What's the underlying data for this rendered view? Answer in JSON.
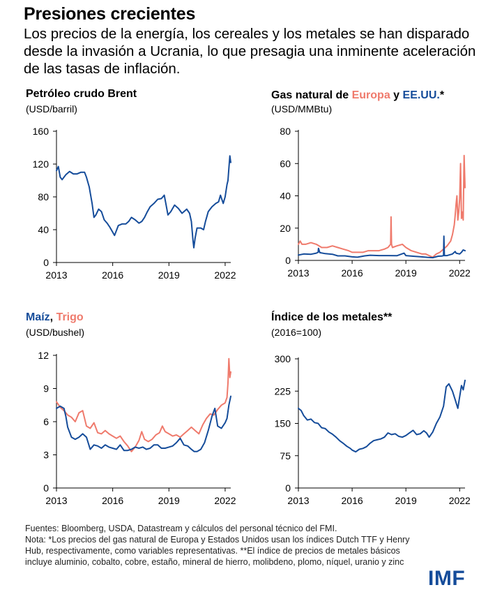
{
  "headline": "Presiones crecientes",
  "subtitle": "Los precios de la energía, los cereales y los metales se han disparado desde la invasión a Ucrania, lo que presagia una inminente aceleración de las tasas de inflación.",
  "panels": {
    "brent": {
      "title": "Petróleo crudo Brent",
      "unit": "(USD/barril)"
    },
    "gas": {
      "title_prefix": "Gas natural de ",
      "title_europe": "Europa",
      "title_conj": " y ",
      "title_us": "EE.UU.",
      "title_suffix": "*",
      "unit": "(USD/MMBtu)"
    },
    "grains": {
      "title_corn": "Maíz",
      "title_sep": ", ",
      "title_wheat": "Trigo",
      "unit": "(USD/bushel)"
    },
    "metals": {
      "title": "Índice de los metales**",
      "unit": "(2016=100)"
    }
  },
  "footer": {
    "sources": "Fuentes: Bloomberg, USDA, Datastream y cálculos del personal técnico del FMI.",
    "note": "Nota: *Los precios del gas natural de Europa y Estados Unidos usan los índices Dutch TTF y Henry Hub, respectivamente, como variables representativas. **El índice de precios de metales básicos incluye aluminio, cobalto, cobre, estaño, mineral de hierro, molibdeno, plomo, níquel, uranio y zinc"
  },
  "logo": "IMF",
  "colors": {
    "blue": "#154c9a",
    "red": "#ef7a6c"
  },
  "chart_data": [
    {
      "type": "line",
      "title": "Petróleo crudo Brent",
      "ylabel": "USD/barril",
      "xlim": [
        2013,
        2022.3
      ],
      "ylim": [
        0,
        160
      ],
      "yticks": [
        0,
        40,
        80,
        120,
        160
      ],
      "xticks": [
        2013,
        2016,
        2019,
        2022
      ],
      "series": [
        {
          "name": "Brent",
          "color": "#154c9a",
          "x": [
            2013,
            2013.1,
            2013.2,
            2013.3,
            2013.5,
            2013.7,
            2013.9,
            2014.1,
            2014.3,
            2014.5,
            2014.6,
            2014.75,
            2014.9,
            2015.0,
            2015.1,
            2015.25,
            2015.4,
            2015.55,
            2015.7,
            2015.85,
            2016.0,
            2016.1,
            2016.3,
            2016.5,
            2016.7,
            2016.85,
            2017.0,
            2017.2,
            2017.4,
            2017.55,
            2017.7,
            2017.85,
            2018.0,
            2018.2,
            2018.4,
            2018.6,
            2018.75,
            2018.85,
            2018.95,
            2019.1,
            2019.3,
            2019.5,
            2019.7,
            2019.85,
            2019.95,
            2020.1,
            2020.2,
            2020.28,
            2020.33,
            2020.4,
            2020.5,
            2020.7,
            2020.85,
            2020.95,
            2021.1,
            2021.3,
            2021.5,
            2021.65,
            2021.75,
            2021.9,
            2022.0,
            2022.1,
            2022.15,
            2022.2,
            2022.25,
            2022.3
          ],
          "values": [
            112,
            117,
            104,
            101,
            107,
            111,
            108,
            108,
            110,
            110,
            104,
            92,
            72,
            55,
            58,
            65,
            62,
            52,
            48,
            43,
            37,
            33,
            45,
            47,
            47,
            50,
            55,
            52,
            48,
            50,
            55,
            62,
            68,
            72,
            77,
            78,
            82,
            70,
            58,
            62,
            70,
            66,
            60,
            63,
            65,
            60,
            50,
            28,
            18,
            30,
            42,
            42,
            40,
            50,
            62,
            68,
            72,
            74,
            82,
            72,
            80,
            95,
            100,
            115,
            130,
            122
          ]
        }
      ]
    },
    {
      "type": "line",
      "title": "Gas natural de Europa y EE.UU.*",
      "ylabel": "USD/MMBtu",
      "xlim": [
        2013,
        2022.3
      ],
      "ylim": [
        0,
        80
      ],
      "yticks": [
        0,
        20,
        40,
        60,
        80
      ],
      "xticks": [
        2013,
        2016,
        2019,
        2022
      ],
      "series": [
        {
          "name": "Europa",
          "color": "#ef7a6c",
          "x": [
            2013,
            2013.1,
            2013.2,
            2013.4,
            2013.7,
            2014.0,
            2014.3,
            2014.6,
            2014.9,
            2015.2,
            2015.5,
            2015.8,
            2016.0,
            2016.3,
            2016.6,
            2016.9,
            2017.2,
            2017.5,
            2017.8,
            2018.0,
            2018.15,
            2018.17,
            2018.2,
            2018.25,
            2018.5,
            2018.8,
            2019.0,
            2019.3,
            2019.6,
            2019.9,
            2020.1,
            2020.3,
            2020.5,
            2020.7,
            2020.9,
            2021.1,
            2021.3,
            2021.5,
            2021.6,
            2021.7,
            2021.75,
            2021.8,
            2021.85,
            2021.9,
            2021.95,
            2022.0,
            2022.05,
            2022.1,
            2022.15,
            2022.2,
            2022.25,
            2022.3
          ],
          "values": [
            10,
            12,
            10,
            10,
            11,
            10,
            8,
            8,
            9,
            8,
            7,
            6,
            5,
            5,
            5,
            6,
            6,
            6,
            7,
            8,
            10,
            27,
            10,
            8,
            9,
            10,
            8,
            6,
            5,
            4,
            4,
            3,
            2,
            4,
            5,
            7,
            9,
            12,
            16,
            22,
            28,
            35,
            40,
            25,
            30,
            38,
            60,
            26,
            30,
            25,
            65,
            45
          ]
        },
        {
          "name": "EE.UU.",
          "color": "#154c9a",
          "x": [
            2013,
            2013.3,
            2013.7,
            2014.0,
            2014.1,
            2014.12,
            2014.2,
            2014.5,
            2014.9,
            2015.2,
            2015.6,
            2016.0,
            2016.3,
            2016.7,
            2017.0,
            2017.5,
            2018.0,
            2018.5,
            2018.9,
            2019.0,
            2019.4,
            2019.8,
            2020.2,
            2020.5,
            2020.8,
            2021.0,
            2021.1,
            2021.12,
            2021.15,
            2021.3,
            2021.6,
            2021.75,
            2021.8,
            2022.0,
            2022.1,
            2022.2,
            2022.3
          ],
          "values": [
            3.3,
            4,
            3.8,
            4.5,
            5,
            7.5,
            4.8,
            4.2,
            3.8,
            2.8,
            2.8,
            2.2,
            2,
            2.8,
            3.2,
            3,
            3,
            2.9,
            4.5,
            3,
            2.6,
            2.3,
            1.9,
            1.7,
            2.6,
            2.7,
            3,
            15,
            3,
            3,
            4,
            5.5,
            4.5,
            4,
            5,
            6.5,
            6
          ]
        }
      ]
    },
    {
      "type": "line",
      "title": "Maíz, Trigo",
      "ylabel": "USD/bushel",
      "xlim": [
        2013,
        2022.3
      ],
      "ylim": [
        0,
        12
      ],
      "yticks": [
        0,
        3,
        6,
        9,
        12
      ],
      "xticks": [
        2013,
        2016,
        2019,
        2022
      ],
      "series": [
        {
          "name": "Trigo",
          "color": "#ef7a6c",
          "x": [
            2013,
            2013.2,
            2013.4,
            2013.6,
            2013.8,
            2014.0,
            2014.2,
            2014.4,
            2014.6,
            2014.8,
            2015.0,
            2015.2,
            2015.4,
            2015.6,
            2015.8,
            2016.0,
            2016.2,
            2016.4,
            2016.6,
            2016.8,
            2017.0,
            2017.2,
            2017.4,
            2017.55,
            2017.7,
            2017.9,
            2018.1,
            2018.3,
            2018.5,
            2018.65,
            2018.8,
            2019.0,
            2019.2,
            2019.4,
            2019.6,
            2019.8,
            2020.0,
            2020.2,
            2020.4,
            2020.6,
            2020.8,
            2021.0,
            2021.2,
            2021.4,
            2021.6,
            2021.8,
            2022.0,
            2022.1,
            2022.15,
            2022.2,
            2022.25,
            2022.3
          ],
          "values": [
            7.8,
            7.3,
            7,
            6.6,
            6.4,
            6,
            6.8,
            7,
            5.6,
            5.4,
            5.9,
            5,
            4.9,
            5.2,
            4.9,
            4.7,
            4.5,
            4.7,
            4.2,
            3.8,
            3.3,
            3.7,
            4.3,
            5.1,
            4.4,
            4.2,
            4.4,
            4.8,
            5,
            5.6,
            5.1,
            4.9,
            4.7,
            4.8,
            4.6,
            4.9,
            5.2,
            5.5,
            5.2,
            4.9,
            5.7,
            6.3,
            6.7,
            6.6,
            7.1,
            7.5,
            7.7,
            8.2,
            9.5,
            11.7,
            10,
            10.5
          ]
        },
        {
          "name": "Maíz",
          "color": "#154c9a",
          "x": [
            2013,
            2013.2,
            2013.4,
            2013.5,
            2013.6,
            2013.8,
            2014.0,
            2014.2,
            2014.4,
            2014.6,
            2014.8,
            2015.0,
            2015.2,
            2015.4,
            2015.6,
            2015.8,
            2016.0,
            2016.2,
            2016.4,
            2016.6,
            2016.8,
            2017.0,
            2017.2,
            2017.4,
            2017.6,
            2017.8,
            2018.0,
            2018.2,
            2018.4,
            2018.6,
            2018.8,
            2019.0,
            2019.2,
            2019.4,
            2019.6,
            2019.8,
            2020.0,
            2020.2,
            2020.35,
            2020.5,
            2020.7,
            2020.9,
            2021.1,
            2021.3,
            2021.45,
            2021.6,
            2021.8,
            2022.0,
            2022.1,
            2022.2,
            2022.3
          ],
          "values": [
            7.2,
            7.4,
            7.2,
            6.5,
            5.5,
            4.6,
            4.4,
            4.6,
            4.9,
            4.6,
            3.5,
            3.9,
            3.8,
            3.6,
            3.9,
            3.7,
            3.6,
            3.5,
            3.9,
            3.4,
            3.4,
            3.5,
            3.7,
            3.6,
            3.7,
            3.5,
            3.6,
            3.9,
            3.9,
            3.6,
            3.6,
            3.7,
            3.8,
            4.1,
            4.5,
            3.9,
            3.8,
            3.5,
            3.3,
            3.3,
            3.5,
            4.1,
            5.2,
            6.5,
            7.2,
            5.6,
            5.4,
            5.9,
            6.3,
            7.5,
            8.3
          ]
        }
      ]
    },
    {
      "type": "line",
      "title": "Índice de los metales**",
      "ylabel": "2016=100",
      "xlim": [
        2013,
        2022.3
      ],
      "ylim": [
        0,
        300
      ],
      "yticks": [
        0,
        75,
        150,
        225,
        300
      ],
      "xticks": [
        2013,
        2016,
        2019,
        2022
      ],
      "series": [
        {
          "name": "Índice de los metales",
          "color": "#154c9a",
          "x": [
            2013,
            2013.15,
            2013.3,
            2013.5,
            2013.7,
            2013.9,
            2014.1,
            2014.3,
            2014.5,
            2014.7,
            2014.9,
            2015.1,
            2015.3,
            2015.5,
            2015.7,
            2015.9,
            2016.0,
            2016.2,
            2016.4,
            2016.6,
            2016.8,
            2017.0,
            2017.2,
            2017.4,
            2017.6,
            2017.8,
            2018.0,
            2018.2,
            2018.4,
            2018.6,
            2018.8,
            2019.0,
            2019.2,
            2019.4,
            2019.6,
            2019.8,
            2020.0,
            2020.15,
            2020.3,
            2020.5,
            2020.7,
            2020.9,
            2021.1,
            2021.25,
            2021.4,
            2021.6,
            2021.75,
            2021.9,
            2022.0,
            2022.1,
            2022.2,
            2022.3
          ],
          "values": [
            185,
            180,
            168,
            158,
            160,
            152,
            150,
            140,
            138,
            130,
            125,
            118,
            110,
            104,
            97,
            92,
            88,
            84,
            90,
            92,
            96,
            104,
            110,
            112,
            114,
            118,
            128,
            124,
            126,
            120,
            118,
            122,
            128,
            134,
            124,
            126,
            133,
            128,
            118,
            130,
            150,
            165,
            190,
            235,
            242,
            225,
            205,
            185,
            212,
            238,
            228,
            250
          ]
        }
      ]
    }
  ]
}
